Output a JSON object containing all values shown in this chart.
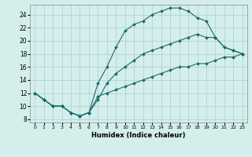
{
  "xlabel": "Humidex (Indice chaleur)",
  "bg_color": "#d4eeec",
  "line_color": "#1a6b6b",
  "grid_color": "#aacece",
  "xlim": [
    -0.5,
    23.5
  ],
  "ylim": [
    7.5,
    25.5
  ],
  "xticks": [
    0,
    1,
    2,
    3,
    4,
    5,
    6,
    7,
    8,
    9,
    10,
    11,
    12,
    13,
    14,
    15,
    16,
    17,
    18,
    19,
    20,
    21,
    22,
    23
  ],
  "yticks": [
    8,
    10,
    12,
    14,
    16,
    18,
    20,
    22,
    24
  ],
  "line1_x": [
    0,
    1,
    2,
    3,
    4,
    5,
    6,
    7,
    8,
    9,
    10,
    11,
    12,
    13,
    14,
    15,
    16,
    17,
    18,
    19,
    20,
    21,
    22,
    23
  ],
  "line1_y": [
    12,
    11,
    10,
    10,
    9,
    8.5,
    9,
    11.5,
    12,
    12.5,
    13,
    13.5,
    14,
    14.5,
    15,
    15.5,
    16,
    16,
    16.5,
    16.5,
    17,
    17.5,
    17.5,
    18
  ],
  "line2_x": [
    0,
    1,
    2,
    3,
    4,
    5,
    6,
    7,
    8,
    9,
    10,
    11,
    12,
    13,
    14,
    15,
    16,
    17,
    18,
    19,
    20,
    21,
    22,
    23
  ],
  "line2_y": [
    12,
    11,
    10,
    10,
    9,
    8.5,
    9,
    13.5,
    16,
    19,
    21.5,
    22.5,
    23,
    24,
    24.5,
    25,
    25,
    24.5,
    23.5,
    23,
    20.5,
    19,
    18.5,
    18
  ],
  "line3_x": [
    0,
    1,
    2,
    3,
    4,
    5,
    6,
    7,
    8,
    9,
    10,
    11,
    12,
    13,
    14,
    15,
    16,
    17,
    18,
    19,
    20,
    21,
    22,
    23
  ],
  "line3_y": [
    12,
    11,
    10,
    10,
    9,
    8.5,
    9,
    11,
    13.5,
    15,
    16,
    17,
    18,
    18.5,
    19,
    19.5,
    20,
    20.5,
    21,
    20.5,
    20.5,
    19,
    18.5,
    18
  ]
}
